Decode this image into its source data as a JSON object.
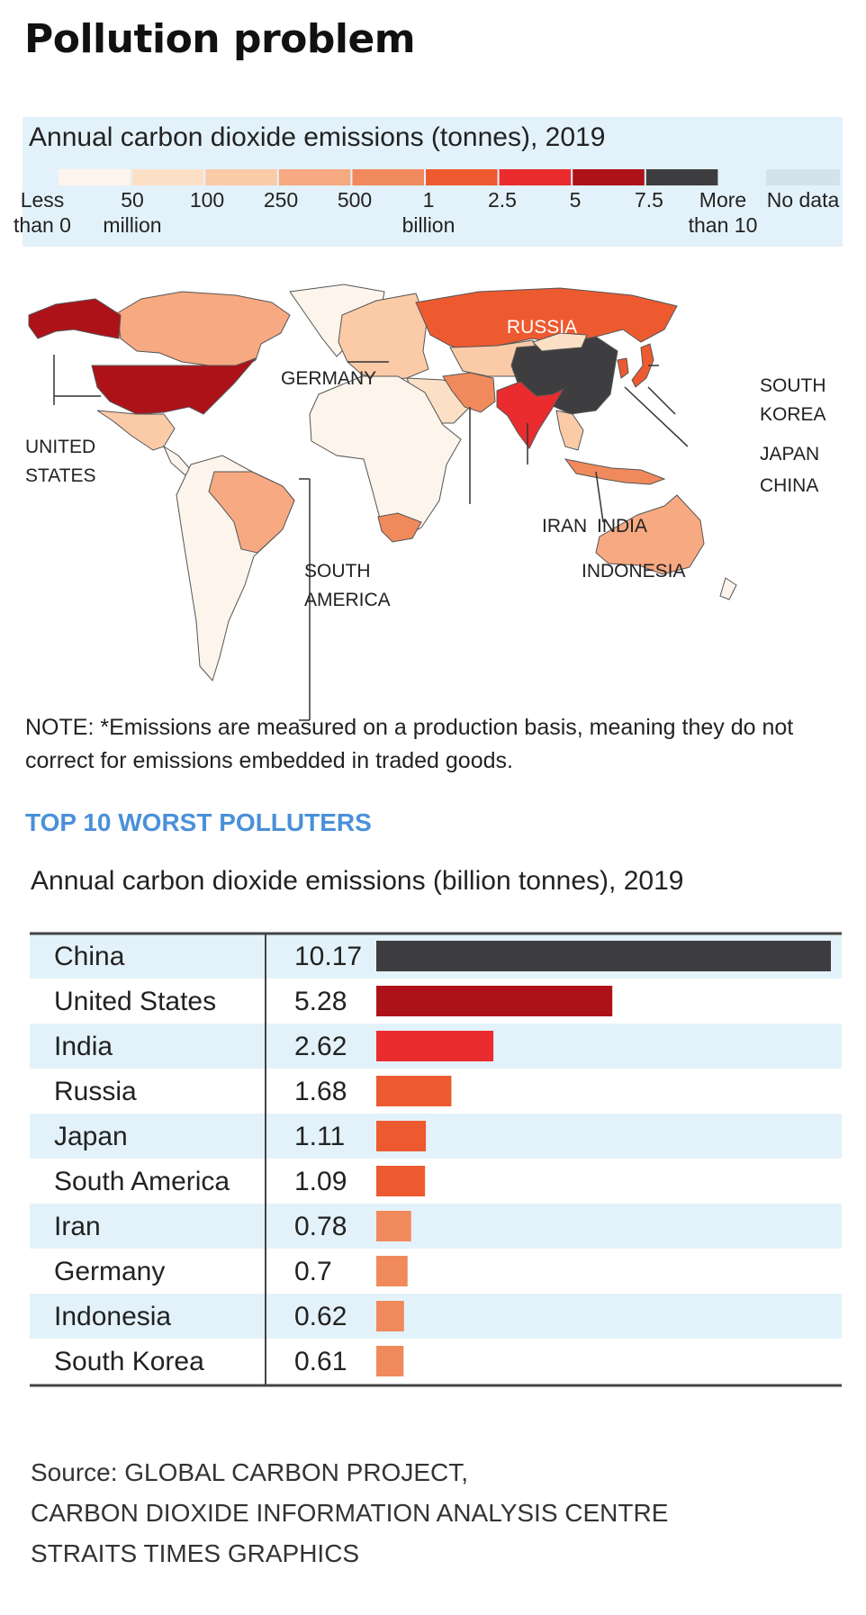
{
  "page": {
    "title": "Pollution problem"
  },
  "map": {
    "legend": {
      "title": "Annual carbon dioxide emissions (tonnes), 2019",
      "swatch_colors": [
        "#fdf4ec",
        "#fce0c6",
        "#fbcba8",
        "#f7a981",
        "#f08a5c",
        "#ee5a30",
        "#ea2c2e",
        "#ae1219",
        "#3e3e40"
      ],
      "no_data_color": "#d3e3ec",
      "labels": [
        {
          "id": "less",
          "lines": [
            "Less",
            "than 0"
          ]
        },
        {
          "id": "50",
          "lines": [
            "50",
            "million"
          ]
        },
        {
          "id": "100",
          "lines": [
            "100"
          ]
        },
        {
          "id": "250",
          "lines": [
            "250"
          ]
        },
        {
          "id": "500",
          "lines": [
            "500"
          ]
        },
        {
          "id": "1",
          "lines": [
            "1",
            "billion"
          ]
        },
        {
          "id": "2.5",
          "lines": [
            "2.5"
          ]
        },
        {
          "id": "5",
          "lines": [
            "5"
          ]
        },
        {
          "id": "7.5",
          "lines": [
            "7.5"
          ]
        },
        {
          "id": "more",
          "lines": [
            "More",
            "than 10"
          ]
        },
        {
          "id": "nodata",
          "lines": [
            "No data"
          ]
        }
      ]
    },
    "country_labels": {
      "russia": "RUSSIA",
      "germany": "GERMANY",
      "united_states": [
        "UNITED",
        "STATES"
      ],
      "south_korea": [
        "SOUTH",
        "KOREA"
      ],
      "japan": "JAPAN",
      "china": "CHINA",
      "iran": "IRAN",
      "india": "INDIA",
      "indonesia": "INDONESIA",
      "south_america": [
        "SOUTH",
        "AMERICA"
      ]
    },
    "note": "NOTE: *Emissions are measured on a production basis, meaning they do not correct for emissions embedded in traded goods."
  },
  "section_heading": "TOP 10 WORST POLLUTERS",
  "chart_data": {
    "type": "bar",
    "title": "Annual carbon dioxide emissions (billion tonnes), 2019",
    "categories": [
      "China",
      "United States",
      "India",
      "Russia",
      "Japan",
      "South America",
      "Iran",
      "Germany",
      "Indonesia",
      "South Korea"
    ],
    "values": [
      10.17,
      5.28,
      2.62,
      1.68,
      1.11,
      1.09,
      0.78,
      0.7,
      0.62,
      0.61
    ],
    "value_labels": [
      "10.17",
      "5.28",
      "2.62",
      "1.68",
      "1.11",
      "1.09",
      "0.78",
      "0.7",
      "0.62",
      "0.61"
    ],
    "colors": [
      "#3e3e40",
      "#ae1219",
      "#ea2c2e",
      "#ee5a30",
      "#ee5a30",
      "#ee5a30",
      "#f08a5c",
      "#f08a5c",
      "#f08a5c",
      "#f08a5c"
    ],
    "xlim": [
      0,
      10.17
    ],
    "row_stripe_color": "#e3f2fa"
  },
  "source": [
    "Source: GLOBAL CARBON PROJECT,",
    "CARBON DIOXIDE INFORMATION ANALYSIS CENTRE",
    "STRAITS TIMES GRAPHICS"
  ]
}
